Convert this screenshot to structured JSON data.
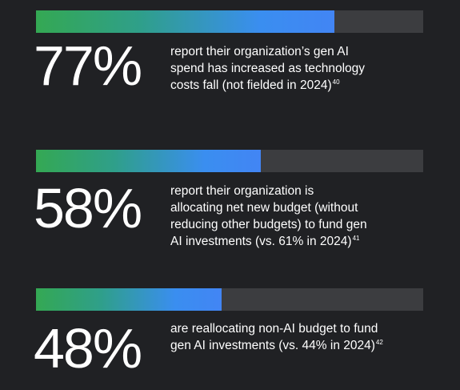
{
  "chart_data": {
    "type": "bar",
    "orientation": "horizontal",
    "xlim": [
      0,
      100
    ],
    "colors": {
      "track": "#3c3d40",
      "gradient_start": "#34a853",
      "gradient_end": "#4285f4",
      "background": "#202124"
    },
    "stats": [
      {
        "value": 77,
        "value_label": "77%",
        "lines": [
          "report their organization’s gen AI",
          "spend has increased as technology",
          "costs fall (not fielded in 2024)"
        ],
        "footnote": "40"
      },
      {
        "value": 58,
        "value_label": "58%",
        "lines": [
          "report their organization is",
          "allocating net new budget (without",
          "reducing other budgets) to fund gen",
          "AI investments (vs. 61% in 2024)"
        ],
        "footnote": "41"
      },
      {
        "value": 48,
        "value_label": "48%",
        "lines": [
          "are reallocating non-AI budget to fund",
          "gen AI investments (vs. 44% in 2024)"
        ],
        "footnote": "42"
      }
    ]
  }
}
